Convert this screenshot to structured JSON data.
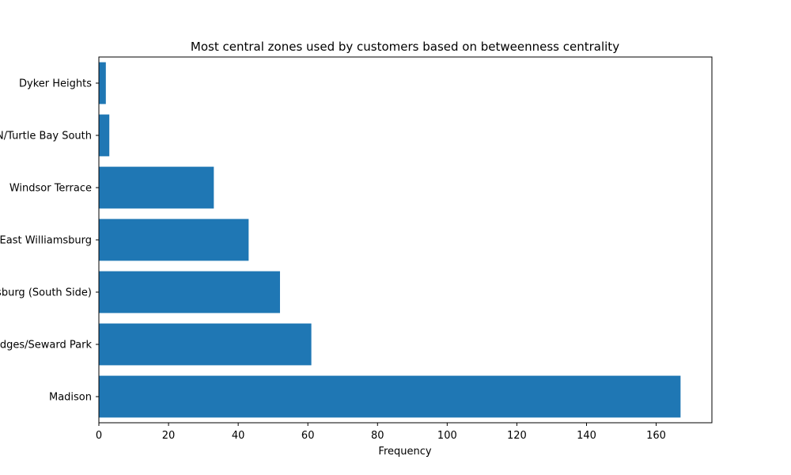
{
  "chart_data": {
    "type": "bar",
    "orientation": "horizontal",
    "title": "Most central zones used by customers based on betweenness centrality",
    "xlabel": "Frequency",
    "ylabel": "",
    "xlim": [
      0,
      176
    ],
    "xticks": [
      0,
      20,
      40,
      60,
      80,
      100,
      120,
      140,
      160
    ],
    "categories": [
      "Madison",
      "Two Bridges/Seward Park",
      "Williamsburg (South Side)",
      "East Williamsburg",
      "Windsor Terrace",
      "UN/Turtle Bay South",
      "Dyker Heights"
    ],
    "values": [
      167,
      61,
      52,
      43,
      33,
      3,
      2
    ],
    "bar_color": "#1f77b4",
    "grid": false,
    "legend": "none"
  }
}
